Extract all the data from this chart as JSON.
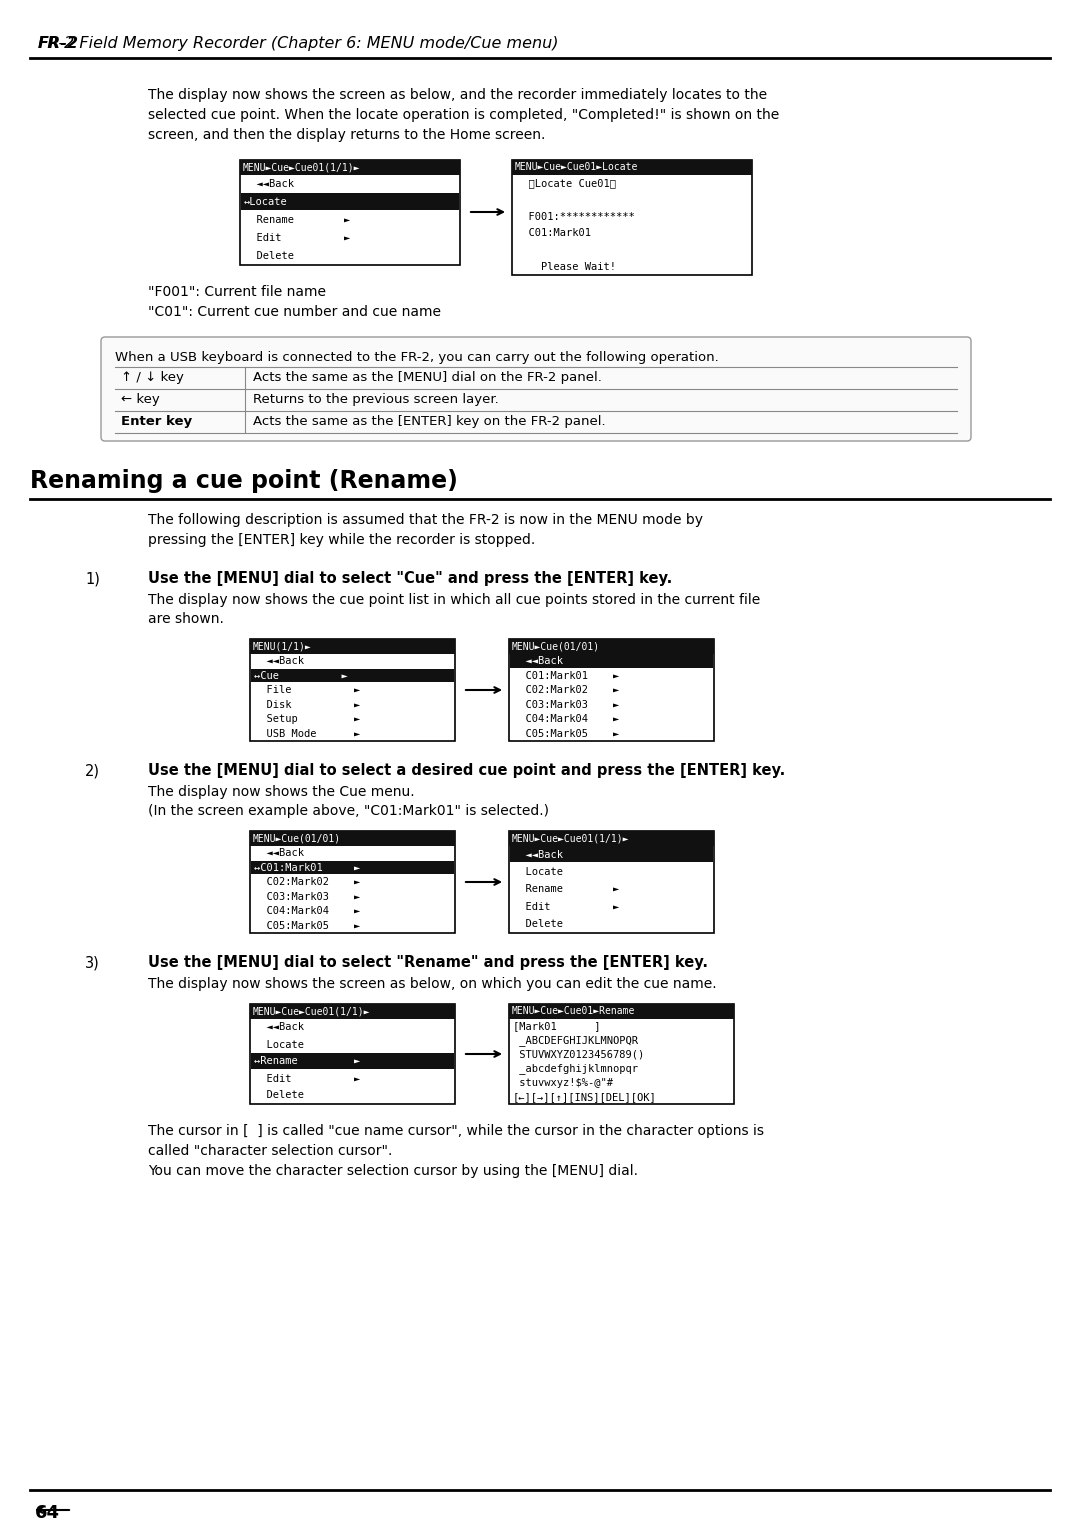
{
  "page_bg": "#ffffff",
  "header_text": "FR-2 Field Memory Recorder (Chapter 6: MENU mode/Cue menu)",
  "footer_number": "64",
  "intro_para": "The display now shows the screen as below, and the recorder immediately locates to the\nselected cue point. When the locate operation is completed, \"Completed!\" is shown on the\nscreen, and then the display returns to the Home screen.",
  "screen1_left_title": "MENU►Cue►Cue01(1/1)►",
  "screen1_left_lines": [
    {
      "text": "  ◄◄Back",
      "highlight": false
    },
    {
      "text": "↔Locate",
      "highlight": true
    },
    {
      "text": "  Rename        ►",
      "highlight": false
    },
    {
      "text": "  Edit          ►",
      "highlight": false
    },
    {
      "text": "  Delete",
      "highlight": false
    }
  ],
  "screen1_right_title": "MENU►Cue►Cue01►Locate",
  "screen1_right_lines": [
    {
      "text": "  〈Locate Cue01〉",
      "highlight": false
    },
    {
      "text": "",
      "highlight": false
    },
    {
      "text": "  F001:************",
      "highlight": false
    },
    {
      "text": "  C01:Mark01",
      "highlight": false
    },
    {
      "text": "",
      "highlight": false
    },
    {
      "text": "    Please Wait!",
      "highlight": false
    }
  ],
  "caption1": "\"F001\": Current file name",
  "caption2": "\"C01\": Current cue number and cue name",
  "usb_note": "When a USB keyboard is connected to the FR-2, you can carry out the following operation.",
  "usb_table_rows": [
    {
      "key": "↑ / ↓ key",
      "bold_key": false,
      "desc": "Acts the same as the [MENU] dial on the FR-2 panel."
    },
    {
      "key": "← key",
      "bold_key": false,
      "desc": "Returns to the previous screen layer."
    },
    {
      "key": "Enter key",
      "bold_key": true,
      "desc": "Acts the same as the [ENTER] key on the FR-2 panel."
    }
  ],
  "section_title": "Renaming a cue point (Rename)",
  "section_intro": "The following description is assumed that the FR-2 is now in the MENU mode by\npressing the [ENTER] key while the recorder is stopped.",
  "step1_num": "1)",
  "step1_bold": "Use the [MENU] dial to select \"Cue\" and press the [ENTER] key.",
  "step1_text": "The display now shows the cue point list in which all cue points stored in the current file\nare shown.",
  "s1_left_title": "MENU(1/1)►",
  "s1_left_lines": [
    {
      "text": "  ◄◄Back",
      "highlight": false
    },
    {
      "text": "↔Cue          ►",
      "highlight": true
    },
    {
      "text": "  File          ►",
      "highlight": false
    },
    {
      "text": "  Disk          ►",
      "highlight": false
    },
    {
      "text": "  Setup         ►",
      "highlight": false
    },
    {
      "text": "  USB Mode      ►",
      "highlight": false
    }
  ],
  "s1_right_title": "MENU►Cue(01/01)",
  "s1_right_lines": [
    {
      "text": "  ◄◄Back",
      "highlight": true
    },
    {
      "text": "  C01:Mark01    ►",
      "highlight": false
    },
    {
      "text": "  C02:Mark02    ►",
      "highlight": false
    },
    {
      "text": "  C03:Mark03    ►",
      "highlight": false
    },
    {
      "text": "  C04:Mark04    ►",
      "highlight": false
    },
    {
      "text": "  C05:Mark05    ►",
      "highlight": false
    }
  ],
  "step2_num": "2)",
  "step2_bold": "Use the [MENU] dial to select a desired cue point and press the [ENTER] key.",
  "step2_text": "The display now shows the Cue menu.\n(In the screen example above, \"C01:Mark01\" is selected.)",
  "s2_left_title": "MENU►Cue(01/01)",
  "s2_left_lines": [
    {
      "text": "  ◄◄Back",
      "highlight": false
    },
    {
      "text": "↔C01:Mark01     ►",
      "highlight": true
    },
    {
      "text": "  C02:Mark02    ►",
      "highlight": false
    },
    {
      "text": "  C03:Mark03    ►",
      "highlight": false
    },
    {
      "text": "  C04:Mark04    ►",
      "highlight": false
    },
    {
      "text": "  C05:Mark05    ►",
      "highlight": false
    }
  ],
  "s2_right_title": "MENU►Cue►Cue01(1/1)►",
  "s2_right_lines": [
    {
      "text": "  ◄◄Back",
      "highlight": true
    },
    {
      "text": "  Locate",
      "highlight": false
    },
    {
      "text": "  Rename        ►",
      "highlight": false
    },
    {
      "text": "  Edit          ►",
      "highlight": false
    },
    {
      "text": "  Delete",
      "highlight": false
    }
  ],
  "step3_num": "3)",
  "step3_bold": "Use the [MENU] dial to select \"Rename\" and press the [ENTER] key.",
  "step3_text": "The display now shows the screen as below, on which you can edit the cue name.",
  "s3_left_title": "MENU►Cue►Cue01(1/1)►",
  "s3_left_lines": [
    {
      "text": "  ◄◄Back",
      "highlight": false
    },
    {
      "text": "  Locate",
      "highlight": false
    },
    {
      "text": "↔Rename         ►",
      "highlight": true
    },
    {
      "text": "  Edit          ►",
      "highlight": false
    },
    {
      "text": "  Delete",
      "highlight": false
    }
  ],
  "s3_right_title": "MENU►Cue►Cue01►Rename",
  "s3_right_lines": [
    {
      "text": "[Mark01      ]",
      "highlight": false
    },
    {
      "text": " _ABCDEFGHIJKLMNOPQR",
      "highlight": false
    },
    {
      "text": " STUVWXYZ0123456789()",
      "highlight": false
    },
    {
      "text": " _abcdefghijklmnopqr",
      "highlight": false
    },
    {
      "text": " stuvwxyz!$%-@\"#",
      "highlight": false
    },
    {
      "text": "[←][→][↑][INS][DEL][OK]",
      "highlight": false
    }
  ],
  "outro_text1": "The cursor in [  ] is called \"cue name cursor\", while the cursor in the character options is\ncalled \"character selection cursor\".",
  "outro_text2": "You can move the character selection cursor by using the [MENU] dial."
}
